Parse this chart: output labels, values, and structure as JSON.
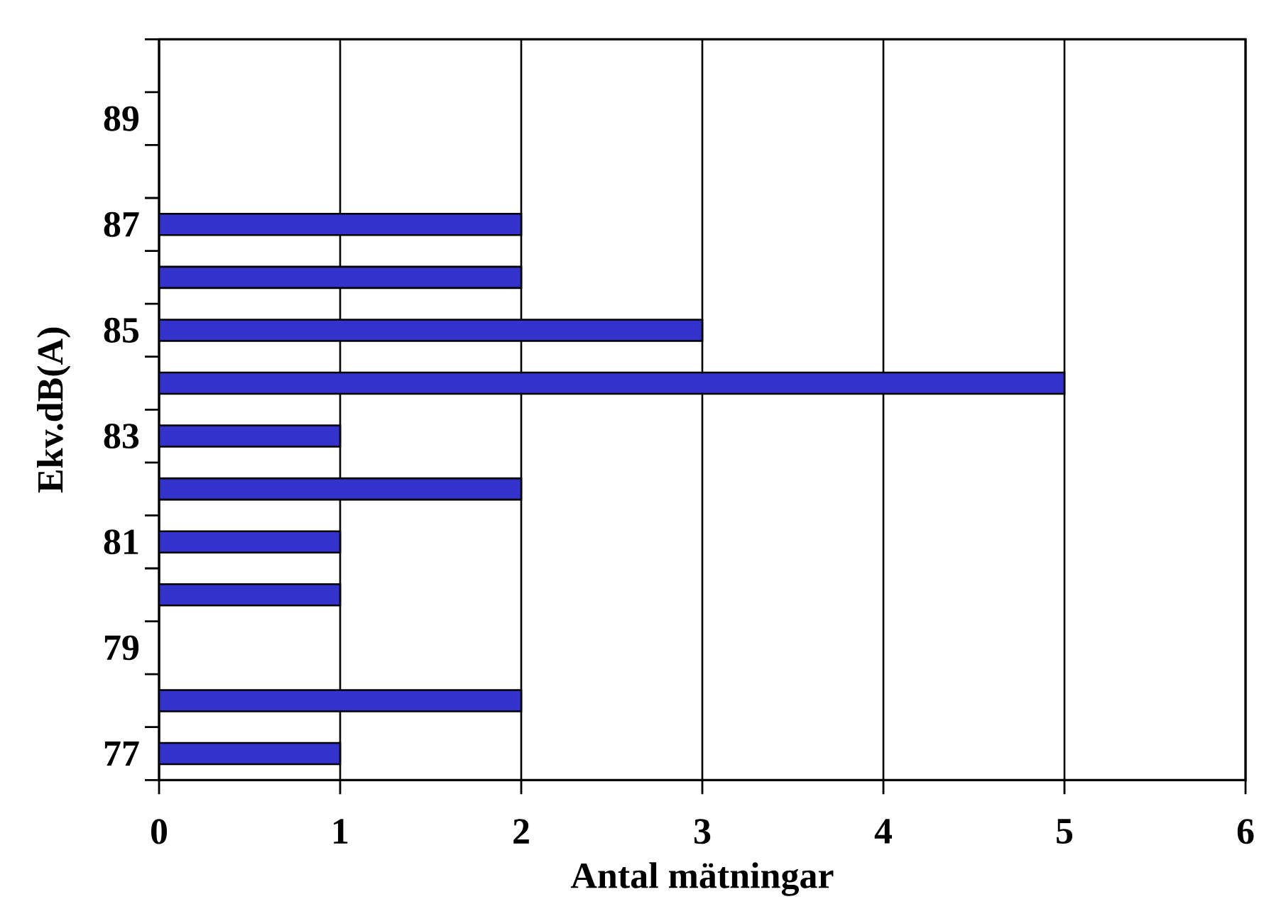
{
  "chart_data": {
    "type": "bar",
    "orientation": "horizontal",
    "xlabel": "Antal mätningar",
    "ylabel": "Ekv.dB(A)",
    "categories": [
      null,
      "89",
      null,
      "87",
      null,
      "85",
      null,
      "83",
      null,
      "81",
      null,
      "79",
      null,
      "77"
    ],
    "values": [
      null,
      null,
      null,
      2,
      2,
      3,
      5,
      1,
      2,
      1,
      1,
      null,
      2,
      1
    ],
    "color": "#3333cc",
    "xlim": [
      0,
      6
    ],
    "xticks": [
      0,
      1,
      2,
      3,
      4,
      5,
      6
    ],
    "grid": "x"
  }
}
